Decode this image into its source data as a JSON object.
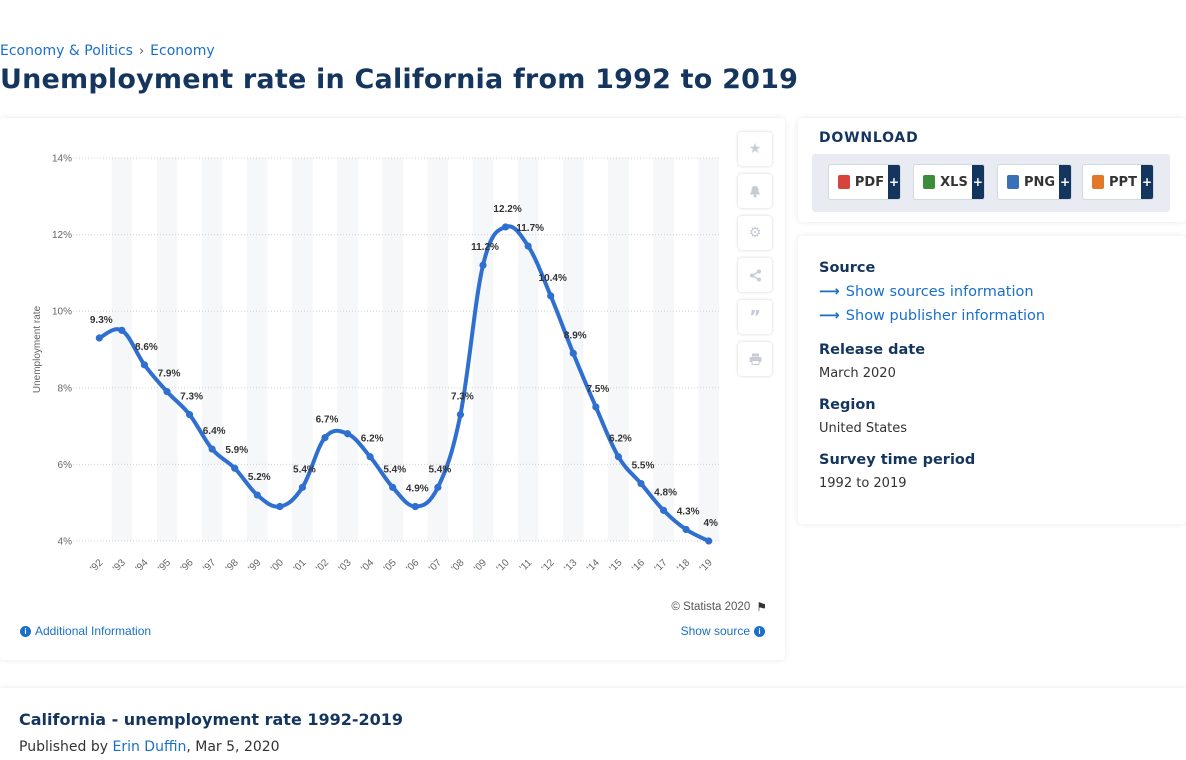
{
  "breadcrumb": {
    "item1": "Economy & Politics",
    "separator": "›",
    "item2": "Economy"
  },
  "page_title": "Unemployment rate in California from 1992 to 2019",
  "chart_tools": {
    "icons": [
      "star-icon",
      "bell-icon",
      "gear-icon",
      "share-icon",
      "quote-icon",
      "print-icon"
    ]
  },
  "chart_footer": {
    "copyright": "© Statista 2020",
    "additional_info": "Additional Information",
    "show_source": "Show source"
  },
  "download": {
    "title": "DOWNLOAD",
    "buttons": [
      {
        "label": "PDF",
        "color": "#d7443c"
      },
      {
        "label": "XLS",
        "color": "#3b8c3b"
      },
      {
        "label": "PNG",
        "color": "#3a70b8"
      },
      {
        "label": "PPT",
        "color": "#e07a2a"
      }
    ],
    "plus": "+"
  },
  "meta": {
    "source_label": "Source",
    "show_sources": "Show sources information",
    "show_publisher": "Show publisher information",
    "release_label": "Release date",
    "release_value": "March 2020",
    "region_label": "Region",
    "region_value": "United States",
    "period_label": "Survey time period",
    "period_value": "1992 to 2019"
  },
  "bottom": {
    "title": "California - unemployment rate 1992-2019",
    "published_prefix": "Published by",
    "author": "Erin Duffin",
    "date": ", Mar 5, 2020"
  },
  "chart_data": {
    "type": "line",
    "ylabel": "Unemployment rate",
    "ylim": [
      4,
      14
    ],
    "yticks": [
      4,
      6,
      8,
      10,
      12,
      14
    ],
    "ytick_labels": [
      "4%",
      "6%",
      "8%",
      "10%",
      "12%",
      "14%"
    ],
    "grid": true,
    "categories": [
      "'92",
      "'93",
      "'94",
      "'95",
      "'96",
      "'97",
      "'98",
      "'99",
      "'00",
      "'01",
      "'02",
      "'03",
      "'04",
      "'05",
      "'06",
      "'07",
      "'08",
      "'09",
      "'10",
      "'11",
      "'12",
      "'13",
      "'14",
      "'15",
      "'16",
      "'17",
      "'18",
      "'19"
    ],
    "values": [
      9.3,
      9.5,
      8.6,
      7.9,
      7.3,
      6.4,
      5.9,
      5.2,
      4.9,
      5.4,
      6.7,
      6.8,
      6.2,
      5.4,
      4.9,
      5.4,
      7.3,
      11.2,
      12.2,
      11.7,
      10.4,
      8.9,
      7.5,
      6.2,
      5.5,
      4.8,
      4.3,
      4.0
    ],
    "labels": [
      "9.3%",
      "",
      "8.6%",
      "7.9%",
      "7.3%",
      "6.4%",
      "5.9%",
      "5.2%",
      "",
      "5.4%",
      "6.7%",
      "",
      "6.2%",
      "5.4%",
      "4.9%",
      "5.4%",
      "7.3%",
      "11.2%",
      "12.2%",
      "11.7%",
      "10.4%",
      "8.9%",
      "7.5%",
      "6.2%",
      "5.5%",
      "4.8%",
      "4.3%",
      "4%"
    ],
    "line_color": "#2f6fd0"
  }
}
